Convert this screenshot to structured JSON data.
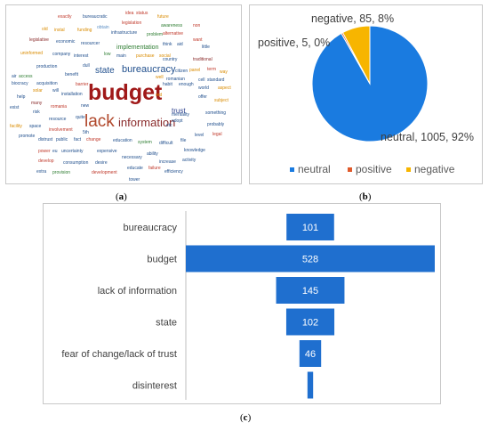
{
  "captions": {
    "a": "a",
    "b": "b",
    "c": "c"
  },
  "wordcloud": {
    "words": [
      {
        "text": "budget",
        "color": "#a01919",
        "weight": "bold",
        "size": 25
      },
      {
        "text": "lack",
        "color": "#b0472a",
        "weight": "normal",
        "size": 19
      },
      {
        "text": "information",
        "color": "#8a2b2b",
        "weight": "normal",
        "size": 13
      },
      {
        "text": "bureaucracy",
        "color": "#1f4e8c",
        "weight": "normal",
        "size": 11
      },
      {
        "text": "state",
        "color": "#1f4e8c",
        "weight": "normal",
        "size": 10
      },
      {
        "text": "implementation",
        "color": "#2e7d32",
        "weight": "normal",
        "size": 7
      },
      {
        "text": "trust",
        "color": "#2b3f8c",
        "weight": "normal",
        "size": 8
      },
      {
        "text": "exactly",
        "color": "#c0392b",
        "weight": "normal",
        "size": 5
      },
      {
        "text": "bureaucratic",
        "color": "#1f4e8c",
        "weight": "normal",
        "size": 5
      },
      {
        "text": "idea",
        "color": "#c0392b",
        "weight": "normal",
        "size": 5
      },
      {
        "text": "status",
        "color": "#c0392b",
        "weight": "normal",
        "size": 5
      },
      {
        "text": "future",
        "color": "#d98b00",
        "weight": "normal",
        "size": 5
      },
      {
        "text": "legislation",
        "color": "#c0392b",
        "weight": "normal",
        "size": 5
      },
      {
        "text": "awareness",
        "color": "#2e7d32",
        "weight": "normal",
        "size": 5
      },
      {
        "text": "non",
        "color": "#c0392b",
        "weight": "normal",
        "size": 5
      },
      {
        "text": "old",
        "color": "#d98b00",
        "weight": "normal",
        "size": 5
      },
      {
        "text": "instal",
        "color": "#d98b00",
        "weight": "normal",
        "size": 5
      },
      {
        "text": "funding",
        "color": "#d98b00",
        "weight": "normal",
        "size": 5
      },
      {
        "text": "obtain",
        "color": "#5b8ec4",
        "weight": "normal",
        "size": 5
      },
      {
        "text": "infrastructure",
        "color": "#1f4e8c",
        "weight": "normal",
        "size": 5
      },
      {
        "text": "problem",
        "color": "#2e7d32",
        "weight": "normal",
        "size": 5
      },
      {
        "text": "alternative",
        "color": "#c0392b",
        "weight": "normal",
        "size": 5
      },
      {
        "text": "legislative",
        "color": "#8a2b2b",
        "weight": "normal",
        "size": 5
      },
      {
        "text": "economic",
        "color": "#1f4e8c",
        "weight": "normal",
        "size": 5
      },
      {
        "text": "resourcer",
        "color": "#1f4e8c",
        "weight": "normal",
        "size": 5
      },
      {
        "text": "think",
        "color": "#1f4e8c",
        "weight": "normal",
        "size": 5
      },
      {
        "text": "aid",
        "color": "#1f4e8c",
        "weight": "normal",
        "size": 5
      },
      {
        "text": "want",
        "color": "#c0392b",
        "weight": "normal",
        "size": 5
      },
      {
        "text": "little",
        "color": "#1f4e8c",
        "weight": "normal",
        "size": 5
      },
      {
        "text": "uninformed",
        "color": "#d98b00",
        "weight": "normal",
        "size": 5
      },
      {
        "text": "company",
        "color": "#1f4e8c",
        "weight": "normal",
        "size": 5
      },
      {
        "text": "interest",
        "color": "#1f4e8c",
        "weight": "normal",
        "size": 5
      },
      {
        "text": "low",
        "color": "#2e7d32",
        "weight": "normal",
        "size": 5
      },
      {
        "text": "main",
        "color": "#1f4e8c",
        "weight": "normal",
        "size": 5
      },
      {
        "text": "purchase",
        "color": "#d98b00",
        "weight": "normal",
        "size": 5
      },
      {
        "text": "social",
        "color": "#d98b00",
        "weight": "normal",
        "size": 5
      },
      {
        "text": "country",
        "color": "#1f4e8c",
        "weight": "normal",
        "size": 5
      },
      {
        "text": "traditional",
        "color": "#8a2b2b",
        "weight": "normal",
        "size": 5
      },
      {
        "text": "production",
        "color": "#1f4e8c",
        "weight": "normal",
        "size": 5
      },
      {
        "text": "dull",
        "color": "#1f4e8c",
        "weight": "normal",
        "size": 5
      },
      {
        "text": "citizen",
        "color": "#1f4e8c",
        "weight": "normal",
        "size": 5
      },
      {
        "text": "panel",
        "color": "#d98b00",
        "weight": "normal",
        "size": 5
      },
      {
        "text": "term",
        "color": "#c0392b",
        "weight": "normal",
        "size": 5
      },
      {
        "text": "way",
        "color": "#d98b00",
        "weight": "normal",
        "size": 5
      },
      {
        "text": "air",
        "color": "#1f4e8c",
        "weight": "normal",
        "size": 5
      },
      {
        "text": "access",
        "color": "#2e7d32",
        "weight": "normal",
        "size": 5
      },
      {
        "text": "benefit",
        "color": "#1f4e8c",
        "weight": "normal",
        "size": 5
      },
      {
        "text": "barrier",
        "color": "#c0392b",
        "weight": "normal",
        "size": 5
      },
      {
        "text": "habit",
        "color": "#1f4e8c",
        "weight": "normal",
        "size": 5
      },
      {
        "text": "enough",
        "color": "#1f4e8c",
        "weight": "normal",
        "size": 5
      },
      {
        "text": "romanian",
        "color": "#1f4e8c",
        "weight": "normal",
        "size": 5
      },
      {
        "text": "cell",
        "color": "#1f4e8c",
        "weight": "normal",
        "size": 5
      },
      {
        "text": "standard",
        "color": "#1f4e8c",
        "weight": "normal",
        "size": 5
      },
      {
        "text": "biocracy",
        "color": "#1f4e8c",
        "weight": "normal",
        "size": 5
      },
      {
        "text": "acquisition",
        "color": "#1f4e8c",
        "weight": "normal",
        "size": 5
      },
      {
        "text": "well",
        "color": "#d98b00",
        "weight": "normal",
        "size": 5
      },
      {
        "text": "world",
        "color": "#1f4e8c",
        "weight": "normal",
        "size": 5
      },
      {
        "text": "aspect",
        "color": "#d98b00",
        "weight": "normal",
        "size": 5
      },
      {
        "text": "solar",
        "color": "#d98b00",
        "weight": "normal",
        "size": 5
      },
      {
        "text": "will",
        "color": "#1f4e8c",
        "weight": "normal",
        "size": 5
      },
      {
        "text": "installation",
        "color": "#1f4e8c",
        "weight": "normal",
        "size": 5
      },
      {
        "text": "red",
        "color": "#d98b00",
        "weight": "normal",
        "size": 5
      },
      {
        "text": "offer",
        "color": "#1f4e8c",
        "weight": "normal",
        "size": 5
      },
      {
        "text": "subject",
        "color": "#d98b00",
        "weight": "normal",
        "size": 5
      },
      {
        "text": "help",
        "color": "#1f4e8c",
        "weight": "normal",
        "size": 5
      },
      {
        "text": "many",
        "color": "#8a2b2b",
        "weight": "normal",
        "size": 5
      },
      {
        "text": "new",
        "color": "#1f4e8c",
        "weight": "normal",
        "size": 5
      },
      {
        "text": "mentality",
        "color": "#1f4e8c",
        "weight": "normal",
        "size": 5
      },
      {
        "text": "something",
        "color": "#1f4e8c",
        "weight": "normal",
        "size": 5
      },
      {
        "text": "exist",
        "color": "#1f4e8c",
        "weight": "normal",
        "size": 5
      },
      {
        "text": "risk",
        "color": "#1f4e8c",
        "weight": "normal",
        "size": 5
      },
      {
        "text": "romania",
        "color": "#c0392b",
        "weight": "normal",
        "size": 5
      },
      {
        "text": "adopt",
        "color": "#1f4e8c",
        "weight": "normal",
        "size": 5
      },
      {
        "text": "probably",
        "color": "#1f4e8c",
        "weight": "normal",
        "size": 5
      },
      {
        "text": "resource",
        "color": "#1f4e8c",
        "weight": "normal",
        "size": 5
      },
      {
        "text": "quite",
        "color": "#1f4e8c",
        "weight": "normal",
        "size": 5
      },
      {
        "text": "etc",
        "color": "#1f4e8c",
        "weight": "normal",
        "size": 5
      },
      {
        "text": "level",
        "color": "#1f4e8c",
        "weight": "normal",
        "size": 5
      },
      {
        "text": "legal",
        "color": "#c0392b",
        "weight": "normal",
        "size": 5
      },
      {
        "text": "facility",
        "color": "#d98b00",
        "weight": "normal",
        "size": 5
      },
      {
        "text": "space",
        "color": "#1f4e8c",
        "weight": "normal",
        "size": 5
      },
      {
        "text": "involvement",
        "color": "#c0392b",
        "weight": "normal",
        "size": 5
      },
      {
        "text": "5th",
        "color": "#1f4e8c",
        "weight": "normal",
        "size": 5
      },
      {
        "text": "expensive",
        "color": "#1f4e8c",
        "weight": "normal",
        "size": 5
      },
      {
        "text": "promote",
        "color": "#1f4e8c",
        "weight": "normal",
        "size": 5
      },
      {
        "text": "distrust",
        "color": "#1f4e8c",
        "weight": "normal",
        "size": 5
      },
      {
        "text": "public",
        "color": "#1f4e8c",
        "weight": "normal",
        "size": 5
      },
      {
        "text": "fact",
        "color": "#1f4e8c",
        "weight": "normal",
        "size": 5
      },
      {
        "text": "change",
        "color": "#c0392b",
        "weight": "normal",
        "size": 5
      },
      {
        "text": "education",
        "color": "#1f4e8c",
        "weight": "normal",
        "size": 5
      },
      {
        "text": "system",
        "color": "#2e7d32",
        "weight": "normal",
        "size": 5
      },
      {
        "text": "difficult",
        "color": "#1f4e8c",
        "weight": "normal",
        "size": 5
      },
      {
        "text": "file",
        "color": "#1f4e8c",
        "weight": "normal",
        "size": 5
      },
      {
        "text": "power",
        "color": "#c0392b",
        "weight": "normal",
        "size": 5
      },
      {
        "text": "eu",
        "color": "#1f4e8c",
        "weight": "normal",
        "size": 5
      },
      {
        "text": "uncertainty",
        "color": "#1f4e8c",
        "weight": "normal",
        "size": 5
      },
      {
        "text": "necessary",
        "color": "#1f4e8c",
        "weight": "normal",
        "size": 5
      },
      {
        "text": "ability",
        "color": "#1f4e8c",
        "weight": "normal",
        "size": 5
      },
      {
        "text": "knowledge",
        "color": "#1f4e8c",
        "weight": "normal",
        "size": 5
      },
      {
        "text": "develop",
        "color": "#c0392b",
        "weight": "normal",
        "size": 5
      },
      {
        "text": "consumption",
        "color": "#1f4e8c",
        "weight": "normal",
        "size": 5
      },
      {
        "text": "desire",
        "color": "#1f4e8c",
        "weight": "normal",
        "size": 5
      },
      {
        "text": "increase",
        "color": "#1f4e8c",
        "weight": "normal",
        "size": 5
      },
      {
        "text": "activity",
        "color": "#1f4e8c",
        "weight": "normal",
        "size": 5
      },
      {
        "text": "extra",
        "color": "#1f4e8c",
        "weight": "normal",
        "size": 5
      },
      {
        "text": "provision",
        "color": "#2e7d32",
        "weight": "normal",
        "size": 5
      },
      {
        "text": "development",
        "color": "#c0392b",
        "weight": "normal",
        "size": 5
      },
      {
        "text": "educate",
        "color": "#1f4e8c",
        "weight": "normal",
        "size": 5
      },
      {
        "text": "failure",
        "color": "#c0392b",
        "weight": "normal",
        "size": 5
      },
      {
        "text": "efficiency",
        "color": "#1f4e8c",
        "weight": "normal",
        "size": 5
      },
      {
        "text": "tower",
        "color": "#1f4e8c",
        "weight": "normal",
        "size": 5
      }
    ]
  },
  "chart_data": [
    {
      "type": "pie",
      "slices": [
        {
          "name": "neutral",
          "value": 1005,
          "percent": 92,
          "label": "neutral, 1005, 92%",
          "color": "#1a7be0"
        },
        {
          "name": "positive",
          "value": 5,
          "percent": 0,
          "label": "positive, 5, 0%",
          "color": "#e05a2b"
        },
        {
          "name": "negative",
          "value": 85,
          "percent": 8,
          "label": "negative, 85, 8%",
          "color": "#f7b500"
        }
      ],
      "legend": {
        "placement": "bottom",
        "items": [
          "neutral",
          "positive",
          "negative"
        ]
      }
    },
    {
      "type": "bar",
      "orientation": "horizontal-centered",
      "categories": [
        "bureaucracy",
        "budget",
        "lack of information",
        "state",
        "fear of change/lack of trust",
        "disinterest"
      ],
      "values": [
        101,
        528,
        145,
        102,
        46,
        12
      ],
      "data_labels": [
        "101",
        "528",
        "145",
        "102",
        "46",
        ""
      ],
      "color": "#1f6fcf"
    }
  ]
}
